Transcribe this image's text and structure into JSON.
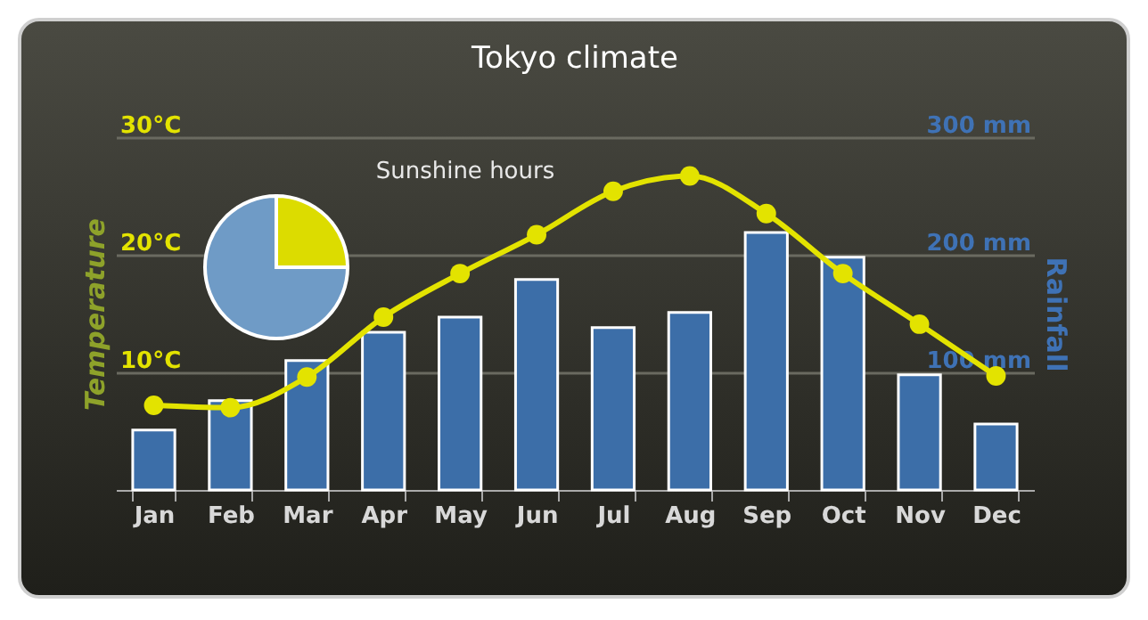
{
  "chart_data": [
    {
      "type": "bar",
      "title": "Tokyo climate",
      "ylabel": "Temperature",
      "y2label": "Rainfall",
      "categories": [
        "Jan",
        "Feb",
        "Mar",
        "Apr",
        "May",
        "Jun",
        "Jul",
        "Aug",
        "Sep",
        "Oct",
        "Nov",
        "Dec"
      ],
      "series": [
        {
          "type": "bar",
          "axis": "y2",
          "color": "#3c6ea8",
          "values": [
            51,
            76,
            110,
            134,
            147,
            179,
            138,
            151,
            219,
            198,
            98,
            56
          ]
        },
        {
          "type": "line",
          "color": "#e3e300",
          "values": [
            7.2,
            7.0,
            9.6,
            14.7,
            18.4,
            21.7,
            25.4,
            26.7,
            23.5,
            18.4,
            14.1,
            9.7
          ]
        }
      ],
      "ylim": [
        0,
        30
      ],
      "yticks": [
        {
          "value": 10,
          "label": "10°C"
        },
        {
          "value": 20,
          "label": "20°C"
        },
        {
          "value": 30,
          "label": "30°C"
        }
      ],
      "y2lim": [
        0,
        300
      ],
      "y2ticks": [
        {
          "value": 100,
          "label": "100 mm"
        },
        {
          "value": 200,
          "label": "200 mm"
        },
        {
          "value": 300,
          "label": "300 mm"
        }
      ],
      "grid": "y",
      "marker": "circle",
      "line_style": "solid"
    },
    {
      "type": "pie",
      "categories": [
        "Sunshine hours",
        null
      ],
      "values": [
        25,
        75
      ],
      "colors": [
        "#dcdc00",
        "#6f9bc6"
      ]
    }
  ]
}
